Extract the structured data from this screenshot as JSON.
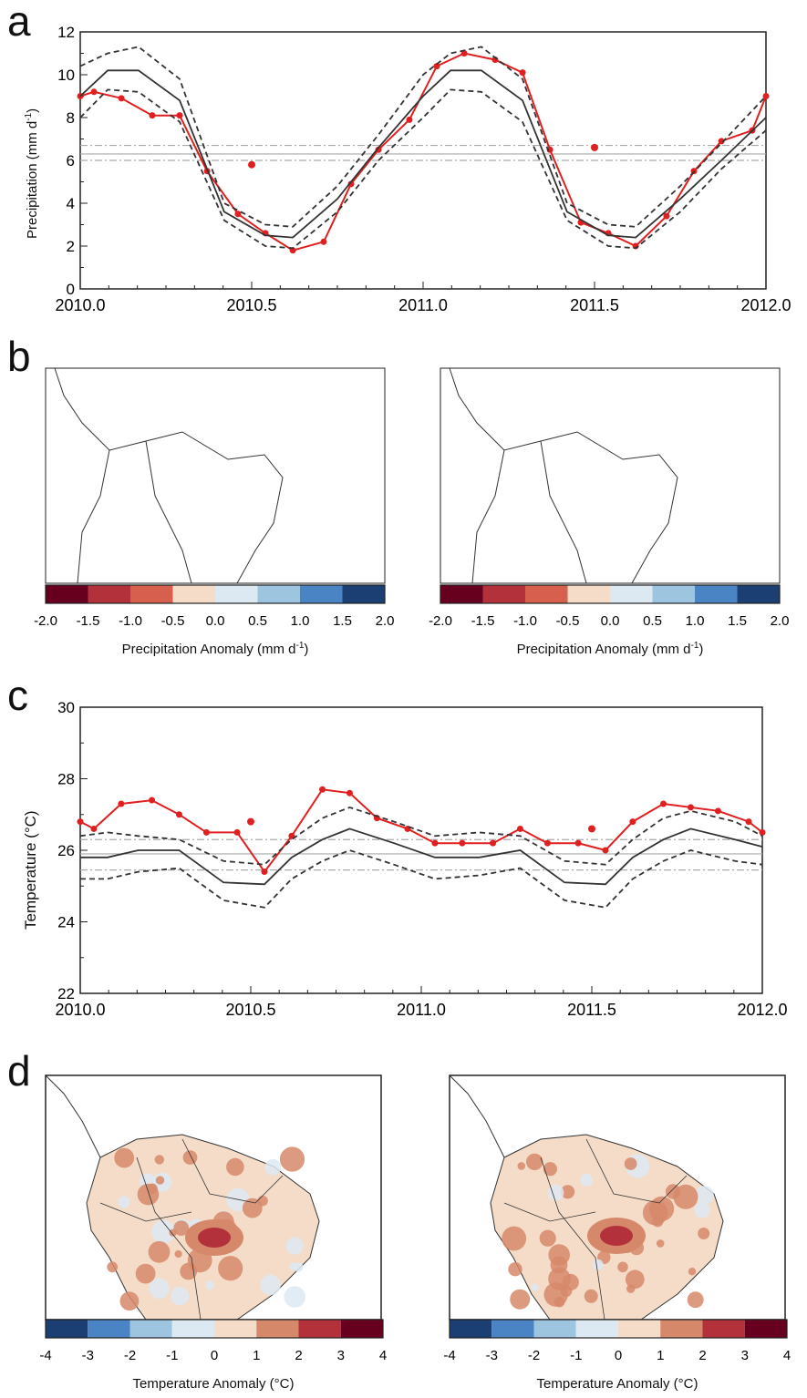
{
  "panels": {
    "a": {
      "letter": "a",
      "ylabel_text": "Precipitation (mm d",
      "ylabel_sup": "-1",
      "ylabel_close": ")",
      "chart_data": {
        "type": "line",
        "ylim": [
          0,
          12
        ],
        "xlim": [
          2010.0,
          2012.0
        ],
        "x_ticks": [
          "2010.0",
          "2010.5",
          "2011.0",
          "2011.5",
          "2012.0"
        ],
        "y_ticks": [
          "0",
          "2",
          "4",
          "6",
          "8",
          "10",
          "12"
        ],
        "series": [
          {
            "role": "observed",
            "color": "#e02020",
            "style": "solid-markers",
            "x": [
              2010.0,
              2010.04,
              2010.12,
              2010.21,
              2010.29,
              2010.37,
              2010.46,
              2010.54,
              2010.62,
              2010.71,
              2010.79,
              2010.87,
              2010.96,
              2011.04,
              2011.12,
              2011.21,
              2011.29,
              2011.37,
              2011.46,
              2011.54,
              2011.62,
              2011.71,
              2011.79,
              2011.87,
              2011.96,
              2012.0
            ],
            "y": [
              9.0,
              9.2,
              8.9,
              8.1,
              8.1,
              5.5,
              3.5,
              2.6,
              1.8,
              2.2,
              4.9,
              6.5,
              7.9,
              10.4,
              11.0,
              10.7,
              10.1,
              6.5,
              3.1,
              2.6,
              2.0,
              3.4,
              5.5,
              6.9,
              7.4,
              9.0
            ]
          },
          {
            "role": "model-mean",
            "color": "#333333",
            "style": "solid",
            "x": [
              2010.0,
              2010.08,
              2010.17,
              2010.29,
              2010.42,
              2010.54,
              2010.62,
              2010.75,
              2010.87,
              2011.0,
              2011.08,
              2011.17,
              2011.29,
              2011.42,
              2011.54,
              2011.62,
              2011.75,
              2011.87,
              2012.0
            ],
            "y": [
              9.0,
              10.2,
              10.2,
              8.8,
              3.6,
              2.5,
              2.4,
              4.2,
              6.6,
              9.0,
              10.2,
              10.2,
              8.8,
              3.6,
              2.5,
              2.4,
              4.2,
              6.0,
              8.0
            ]
          },
          {
            "role": "model-upper",
            "color": "#333333",
            "style": "dashed",
            "x": [
              2010.0,
              2010.08,
              2010.17,
              2010.29,
              2010.42,
              2010.54,
              2010.62,
              2010.75,
              2010.87,
              2011.0,
              2011.08,
              2011.17,
              2011.29,
              2011.42,
              2011.54,
              2011.62,
              2011.75,
              2011.87,
              2012.0
            ],
            "y": [
              10.4,
              11.0,
              11.3,
              9.8,
              4.0,
              3.0,
              2.9,
              4.8,
              7.2,
              10.0,
              11.0,
              11.3,
              9.8,
              4.0,
              3.0,
              2.9,
              4.8,
              6.8,
              9.0
            ]
          },
          {
            "role": "model-lower",
            "color": "#333333",
            "style": "dashed",
            "x": [
              2010.0,
              2010.08,
              2010.17,
              2010.29,
              2010.42,
              2010.54,
              2010.62,
              2010.75,
              2010.87,
              2011.0,
              2011.08,
              2011.17,
              2011.29,
              2011.42,
              2011.54,
              2011.62,
              2011.75,
              2011.87,
              2012.0
            ],
            "y": [
              8.0,
              9.3,
              9.2,
              7.8,
              3.2,
              2.0,
              1.9,
              3.6,
              6.0,
              8.0,
              9.3,
              9.2,
              7.8,
              3.2,
              2.0,
              1.9,
              3.6,
              5.6,
              7.4
            ]
          }
        ],
        "annual_points": [
          {
            "x": 2010.5,
            "y": 5.8
          },
          {
            "x": 2011.5,
            "y": 6.6
          }
        ],
        "hlines": [
          {
            "y": 6.3,
            "style": "solid",
            "color": "#aaaaaa"
          },
          {
            "y": 6.7,
            "style": "dashdot",
            "color": "#aaaaaa"
          },
          {
            "y": 6.0,
            "style": "dashdot",
            "color": "#aaaaaa"
          }
        ]
      }
    },
    "b": {
      "letter": "b",
      "colorbar": {
        "colors": [
          "#67001f",
          "#b2313b",
          "#d6604d",
          "#f4dcc8",
          "#dde9f2",
          "#9ec5e0",
          "#4a84c4",
          "#1c3f73"
        ],
        "ticks": [
          "-2.0",
          "-1.5",
          "-1.0",
          "-0.5",
          "0.0",
          "0.5",
          "1.0",
          "1.5",
          "2.0"
        ],
        "label_text": "Precipitation Anomaly (mm d",
        "label_sup": "-1",
        "label_close": ")"
      }
    },
    "c": {
      "letter": "c",
      "ylabel_text": "Temperature  (°C)",
      "chart_data": {
        "type": "line",
        "ylim": [
          22,
          30
        ],
        "xlim": [
          2010.0,
          2012.0
        ],
        "x_ticks": [
          "2010.0",
          "2010.5",
          "2011.0",
          "2011.5",
          "2012.0"
        ],
        "y_ticks": [
          "22",
          "24",
          "26",
          "28",
          "30"
        ],
        "series": [
          {
            "role": "observed",
            "color": "#e02020",
            "style": "solid-markers",
            "x": [
              2010.0,
              2010.04,
              2010.12,
              2010.21,
              2010.29,
              2010.37,
              2010.46,
              2010.54,
              2010.62,
              2010.71,
              2010.79,
              2010.87,
              2010.96,
              2011.04,
              2011.12,
              2011.21,
              2011.29,
              2011.37,
              2011.46,
              2011.54,
              2011.62,
              2011.71,
              2011.79,
              2011.87,
              2011.96,
              2012.0
            ],
            "y": [
              26.8,
              26.6,
              27.3,
              27.4,
              27.0,
              26.5,
              26.5,
              25.4,
              26.4,
              27.7,
              27.6,
              26.9,
              26.6,
              26.2,
              26.2,
              26.2,
              26.6,
              26.2,
              26.2,
              26.0,
              26.8,
              27.3,
              27.2,
              27.1,
              26.8,
              26.5
            ]
          },
          {
            "role": "model-mean",
            "color": "#333333",
            "style": "solid",
            "x": [
              2010.0,
              2010.08,
              2010.17,
              2010.29,
              2010.42,
              2010.54,
              2010.62,
              2010.71,
              2010.79,
              2010.92,
              2011.04,
              2011.17,
              2011.29,
              2011.42,
              2011.54,
              2011.62,
              2011.71,
              2011.79,
              2011.92,
              2012.0
            ],
            "y": [
              25.8,
              25.8,
              26.0,
              26.0,
              25.1,
              25.05,
              25.8,
              26.3,
              26.6,
              26.2,
              25.8,
              25.8,
              26.0,
              25.1,
              25.05,
              25.8,
              26.3,
              26.6,
              26.3,
              26.1
            ]
          },
          {
            "role": "model-upper",
            "color": "#333333",
            "style": "dashed",
            "x": [
              2010.0,
              2010.08,
              2010.17,
              2010.29,
              2010.42,
              2010.54,
              2010.62,
              2010.71,
              2010.79,
              2010.92,
              2011.04,
              2011.17,
              2011.29,
              2011.42,
              2011.54,
              2011.62,
              2011.71,
              2011.79,
              2011.92,
              2012.0
            ],
            "y": [
              26.4,
              26.5,
              26.4,
              26.3,
              25.7,
              25.6,
              26.3,
              26.9,
              27.2,
              26.8,
              26.4,
              26.5,
              26.4,
              25.7,
              25.6,
              26.3,
              26.9,
              27.1,
              26.8,
              26.4
            ]
          },
          {
            "role": "model-lower",
            "color": "#333333",
            "style": "dashed",
            "x": [
              2010.0,
              2010.08,
              2010.17,
              2010.29,
              2010.42,
              2010.54,
              2010.62,
              2010.71,
              2010.79,
              2010.92,
              2011.04,
              2011.17,
              2011.29,
              2011.42,
              2011.54,
              2011.62,
              2011.71,
              2011.79,
              2011.92,
              2012.0
            ],
            "y": [
              25.2,
              25.2,
              25.4,
              25.5,
              24.6,
              24.4,
              25.2,
              25.7,
              26.0,
              25.6,
              25.2,
              25.3,
              25.5,
              24.6,
              24.4,
              25.2,
              25.7,
              26.0,
              25.7,
              25.6
            ]
          }
        ],
        "annual_points": [
          {
            "x": 2010.5,
            "y": 26.8
          },
          {
            "x": 2011.5,
            "y": 26.6
          }
        ],
        "hlines": [
          {
            "y": 25.9,
            "style": "solid",
            "color": "#aaaaaa"
          },
          {
            "y": 26.3,
            "style": "dashdot",
            "color": "#aaaaaa"
          },
          {
            "y": 25.45,
            "style": "dashdot",
            "color": "#aaaaaa"
          }
        ]
      }
    },
    "d": {
      "letter": "d",
      "colorbar": {
        "colors": [
          "#1c3f73",
          "#4a84c4",
          "#9ec5e0",
          "#dde9f2",
          "#f4dcc8",
          "#d6886a",
          "#b2313b",
          "#67001f"
        ],
        "ticks": [
          "-4",
          "-3",
          "-2",
          "-1",
          "0",
          "1",
          "2",
          "3",
          "4"
        ],
        "label_text": "Temperature Anomaly (°C)"
      }
    }
  }
}
